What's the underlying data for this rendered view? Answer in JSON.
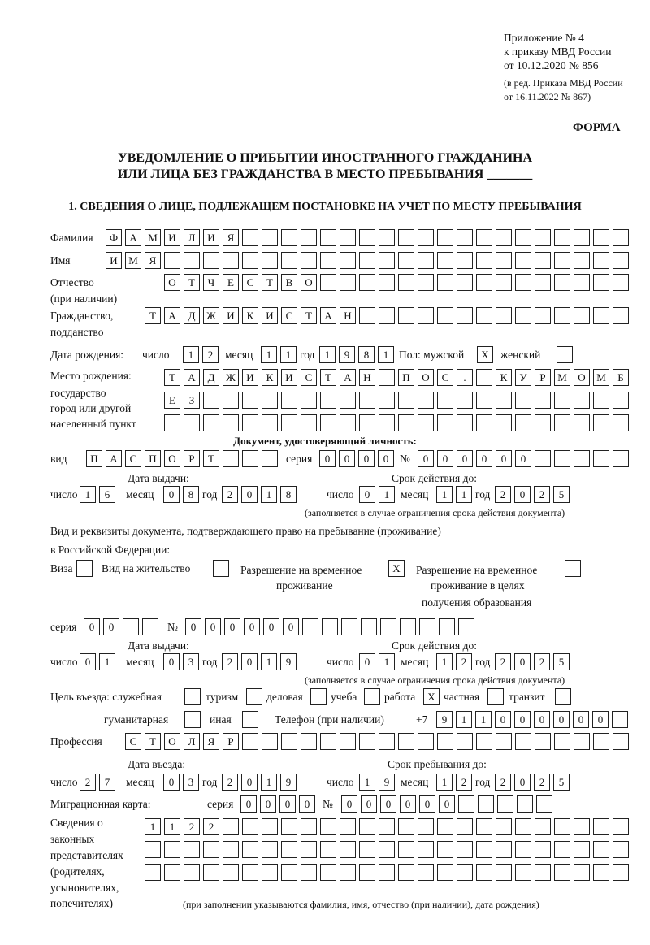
{
  "header": {
    "appendix": [
      "Приложение № 4",
      "к приказу МВД России",
      "от 10.12.2020 № 856"
    ],
    "edition": [
      "(в ред. Приказа МВД России",
      "от 16.11.2022 № 867)"
    ],
    "form_label": "ФОРМА",
    "title_line1": "УВЕДОМЛЕНИЕ О ПРИБЫТИИ ИНОСТРАННОГО ГРАЖДАНИНА",
    "title_line2": "ИЛИ ЛИЦА БЕЗ ГРАЖДАНСТВА В МЕСТО ПРЕБЫВАНИЯ _______",
    "section1": "1. СВЕДЕНИЯ О ЛИЦЕ, ПОДЛЕЖАЩЕМ ПОСТАНОВКЕ НА УЧЕТ ПО МЕСТУ ПРЕБЫВАНИЯ"
  },
  "labels": {
    "surname": "Фамилия",
    "name": "Имя",
    "patronymic": "Отчество",
    "patronymic_note": "(при наличии)",
    "citizenship": "Гражданство,",
    "citizenship2": "подданство",
    "birth_date": "Дата рождения:",
    "day": "число",
    "month": "месяц",
    "year": "год",
    "sex_male": "Пол: мужской",
    "sex_female": "женский",
    "birthplace": [
      "Место рождения:",
      "государство",
      "город или другой",
      "населенный пункт"
    ],
    "id_doc_heading": "Документ, удостоверяющий личность:",
    "kind": "вид",
    "series": "серия",
    "number": "№",
    "issue_date": "Дата выдачи:",
    "valid_until": "Срок действия до:",
    "validity_note": "(заполняется в случае ограничения срока действия документа)",
    "stay_doc_line1": "Вид и реквизиты документа, подтверждающего право на пребывание (проживание)",
    "stay_doc_line2": "в Российской Федерации:",
    "visa": "Виза",
    "residence_permit": "Вид на жительство",
    "temp_residence": [
      "Разрешение на временное",
      "проживание"
    ],
    "temp_residence_edu": [
      "Разрешение на временное",
      "проживание в целях",
      "получения образования"
    ],
    "purpose": "Цель въезда: служебная",
    "tourism": "туризм",
    "business": "деловая",
    "study": "учеба",
    "work": "работа",
    "private": "частная",
    "transit": "транзит",
    "humanitarian": "гуманитарная",
    "other": "иная",
    "phone": "Телефон (при наличии)",
    "phone_prefix": "+7",
    "profession": "Профессия",
    "entry_date": "Дата въезда:",
    "stay_until": "Срок пребывания до:",
    "migration_card": "Миграционная карта:",
    "representatives": [
      "Сведения о",
      "законных",
      "представителях",
      "(родителях,",
      "усыновителях,",
      "попечителях)"
    ],
    "representatives_note": "(при заполнении указываются фамилия, имя, отчество (при наличии), дата рождения)"
  },
  "values": {
    "surname": "ФАМИЛИЯ",
    "name": "ИМЯ",
    "patronymic": "ОТЧЕСТВО",
    "citizenship": "ТАДЖИКИСТАН",
    "birth_day": "12",
    "birth_month": "11",
    "birth_year": "1981",
    "sex_male": "X",
    "sex_female": "",
    "birthplace": [
      "ТАДЖИКИСТАН ПОС. КУРМОМБ",
      "ЕЗ",
      ""
    ],
    "id_kind": "ПАСПОРТ",
    "id_series": "0000",
    "id_number": "000000",
    "id_issue": {
      "day": "16",
      "month": "08",
      "year": "2018"
    },
    "id_valid": {
      "day": "01",
      "month": "11",
      "year": "2025"
    },
    "visa": "",
    "residence_permit": "",
    "temp_residence": "X",
    "temp_residence_edu": "",
    "stay_series": "00",
    "stay_number": "000000",
    "stay_issue": {
      "day": "01",
      "month": "03",
      "year": "2019"
    },
    "stay_valid": {
      "day": "01",
      "month": "12",
      "year": "2025"
    },
    "purpose": {
      "official": "",
      "tourism": "",
      "business": "",
      "study": "",
      "work": "X",
      "private": "",
      "transit": "",
      "humanitarian": "",
      "other": ""
    },
    "phone": "911000000",
    "profession": "СТОЛЯР",
    "entry": {
      "day": "27",
      "month": "03",
      "year": "2019"
    },
    "stay_until": {
      "day": "19",
      "month": "12",
      "year": "2025"
    },
    "mig_series": "0000",
    "mig_number": "000000",
    "representatives": [
      "1122",
      "",
      ""
    ]
  }
}
